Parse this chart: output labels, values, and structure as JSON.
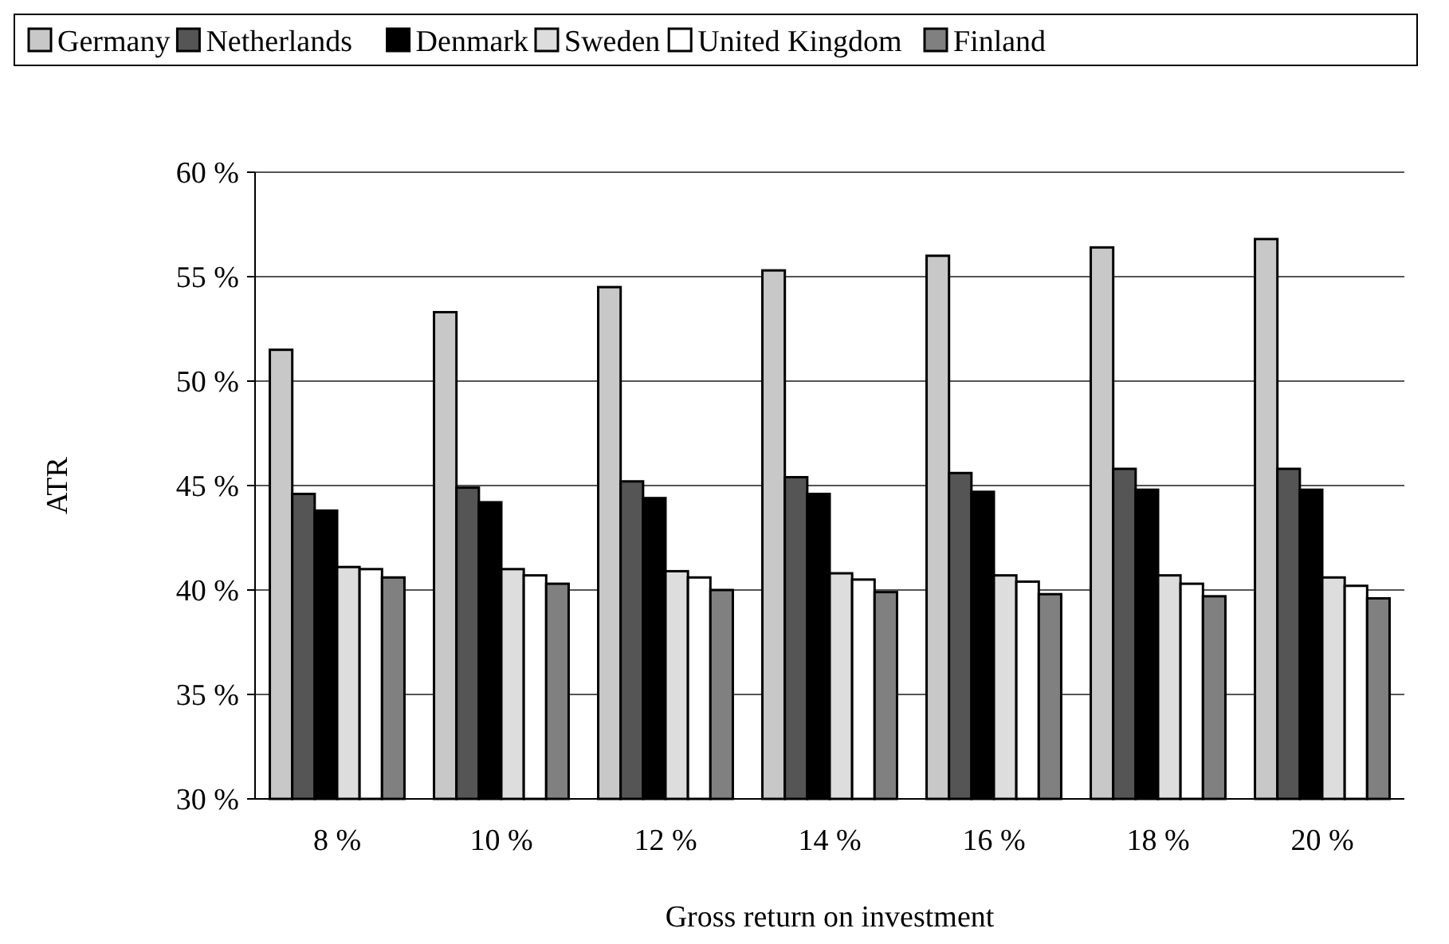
{
  "chart_data": {
    "type": "bar",
    "xlabel": "Gross return on investment",
    "ylabel": "ATR",
    "categories": [
      "8 %",
      "10 %",
      "12 %",
      "14 %",
      "16 %",
      "18 %",
      "20 %"
    ],
    "series": [
      {
        "name": "Germany",
        "color": "#c8c8c8",
        "values": [
          51.5,
          53.3,
          54.5,
          55.3,
          56.0,
          56.4,
          56.8
        ]
      },
      {
        "name": "Netherlands",
        "color": "#555555",
        "values": [
          44.6,
          44.9,
          45.2,
          45.4,
          45.6,
          45.8,
          45.8
        ]
      },
      {
        "name": "Denmark",
        "color": "#000000",
        "values": [
          43.8,
          44.2,
          44.4,
          44.6,
          44.7,
          44.8,
          44.8
        ]
      },
      {
        "name": "Sweden",
        "color": "#dddddd",
        "values": [
          41.1,
          41.0,
          40.9,
          40.8,
          40.7,
          40.7,
          40.6
        ]
      },
      {
        "name": "United Kingdom",
        "color": "#ffffff",
        "values": [
          41.0,
          40.7,
          40.6,
          40.5,
          40.4,
          40.3,
          40.2
        ]
      },
      {
        "name": "Finland",
        "color": "#808080",
        "values": [
          40.6,
          40.3,
          40.0,
          39.9,
          39.8,
          39.7,
          39.6
        ]
      }
    ],
    "ylim": [
      30,
      60
    ],
    "yticks": [
      {
        "value": 30,
        "label": "30 %"
      },
      {
        "value": 35,
        "label": "35 %"
      },
      {
        "value": 40,
        "label": "40 %"
      },
      {
        "value": 45,
        "label": "45 %"
      },
      {
        "value": 50,
        "label": "50 %"
      },
      {
        "value": 55,
        "label": "55 %"
      },
      {
        "value": 60,
        "label": "60 %"
      }
    ],
    "grid": "y",
    "legend": "top"
  }
}
